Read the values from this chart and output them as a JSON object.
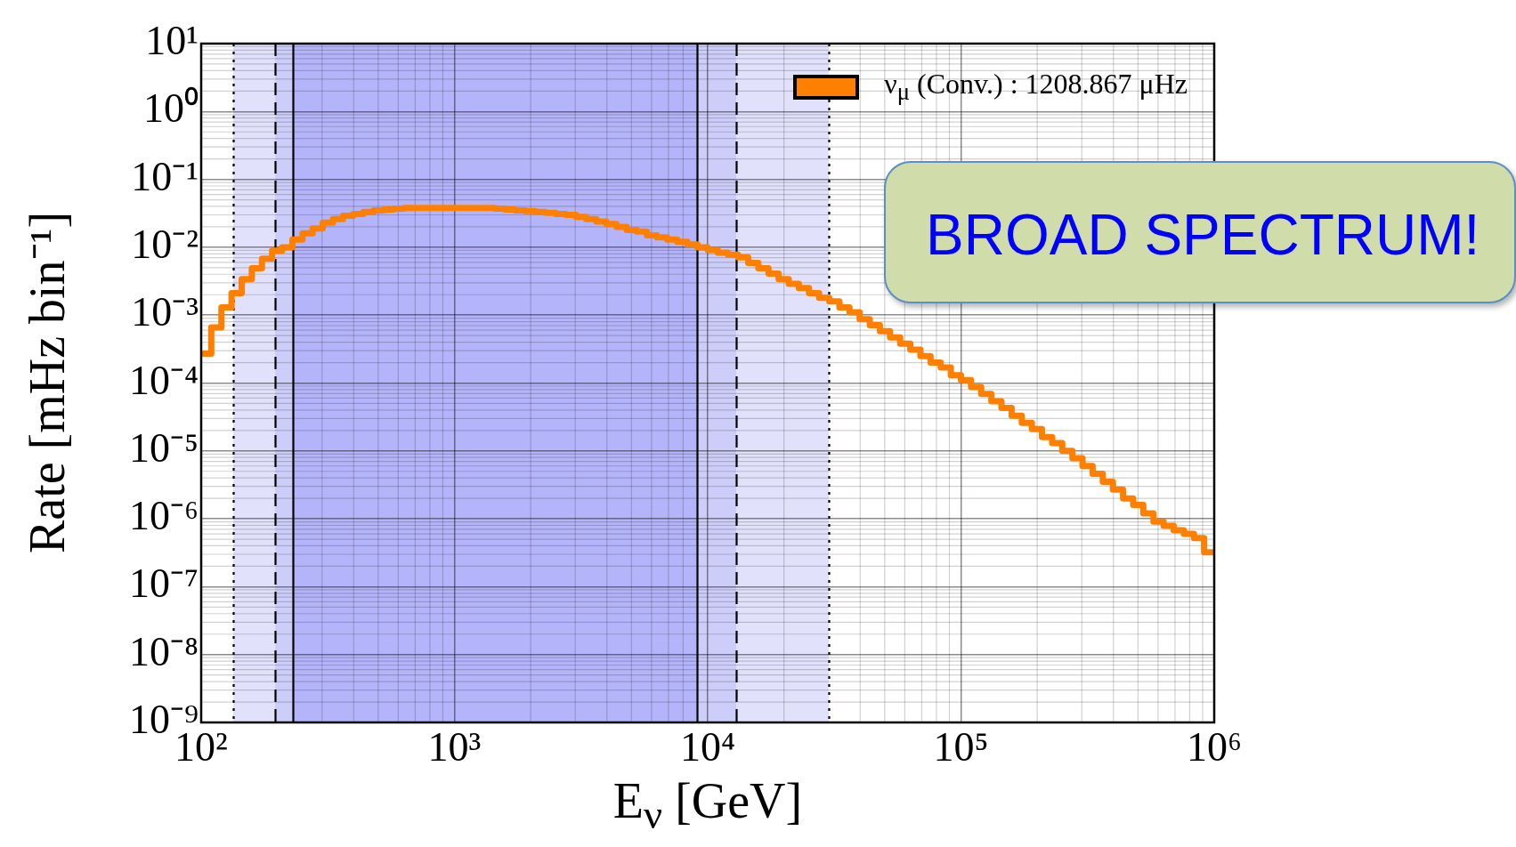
{
  "chart_data": {
    "type": "histogram",
    "xlabel": "E$_{ν}$ [GeV]",
    "ylabel": "Rate [mHz bin⁻¹]",
    "bins": [
      100,
      109.6,
      120.2,
      131.8,
      144.5,
      158.5,
      173.8,
      190.5,
      208.9,
      229.1,
      251.2,
      275.4,
      302,
      331.1,
      363.1,
      398.1,
      436.5,
      478.6,
      524.8,
      575.4,
      631,
      691.8,
      758.6,
      831.8,
      912,
      1000,
      1096,
      1202,
      1318,
      1445,
      1585,
      1738,
      1905,
      2089,
      2291,
      2512,
      2754,
      3020,
      3311,
      3631,
      3981,
      4365,
      4786,
      5248,
      5754,
      6310,
      6918,
      7586,
      8318,
      9120,
      10000,
      10960,
      12020,
      13180,
      14450,
      15850,
      17380,
      19050,
      20890,
      22910,
      25120,
      27540,
      30200,
      33110,
      36310,
      39810,
      43650,
      47860,
      52480,
      57540,
      63100,
      69180,
      75860,
      83180,
      91200,
      100000,
      109600,
      120200,
      131800,
      144500,
      158500,
      173800,
      190500,
      208900,
      229100,
      251200,
      275400,
      302000,
      331100,
      363100,
      398100,
      436500,
      478600,
      524800,
      575400,
      631000,
      691800,
      758600,
      831800,
      912000,
      1000000
    ],
    "series": [
      {
        "name": "ν$_{μ}$ (Conv.) : 1208.867 μHz",
        "color": "#ff8000",
        "values": [
          0.00027,
          0.00066,
          0.0013,
          0.0021,
          0.0034,
          0.0049,
          0.0068,
          0.0089,
          0.01,
          0.013,
          0.016,
          0.019,
          0.023,
          0.026,
          0.029,
          0.031,
          0.033,
          0.035,
          0.036,
          0.037,
          0.038,
          0.038,
          0.038,
          0.038,
          0.038,
          0.038,
          0.038,
          0.038,
          0.038,
          0.037,
          0.036,
          0.035,
          0.034,
          0.033,
          0.032,
          0.031,
          0.03,
          0.028,
          0.026,
          0.024,
          0.022,
          0.02,
          0.018,
          0.017,
          0.015,
          0.014,
          0.013,
          0.012,
          0.011,
          0.01,
          0.0091,
          0.0083,
          0.0078,
          0.0071,
          0.0059,
          0.0049,
          0.0041,
          0.0034,
          0.0029,
          0.0025,
          0.0021,
          0.0018,
          0.0016,
          0.0013,
          0.0011,
          0.00087,
          0.00071,
          0.00058,
          0.00047,
          0.00038,
          0.00031,
          0.00025,
          0.0002,
          0.00017,
          0.00013,
          0.00011,
          8.7e-05,
          6.9e-05,
          5.4e-05,
          4.3e-05,
          3.3e-05,
          2.6e-05,
          2.1e-05,
          1.6e-05,
          1.3e-05,
          1e-05,
          7.8e-06,
          6e-06,
          4.6e-06,
          3.5e-06,
          2.7e-06,
          2e-06,
          1.6e-06,
          1.2e-06,
          9.1e-07,
          7.9e-07,
          6.8e-07,
          6e-07,
          5.2e-07,
          3.2e-07
        ]
      }
    ],
    "log": "xy",
    "xlim": [
      100,
      1000000
    ],
    "xticks": [
      {
        "value": 100,
        "label": "10²"
      },
      {
        "value": 1000,
        "label": "10³"
      },
      {
        "value": 10000,
        "label": "10⁴"
      },
      {
        "value": 100000,
        "label": "10⁵"
      },
      {
        "value": 1000000,
        "label": "10⁶"
      }
    ],
    "ylim": [
      1e-09,
      10
    ],
    "yticks": [
      {
        "value": 1e-09,
        "label": "10⁻⁹"
      },
      {
        "value": 1e-08,
        "label": "10⁻⁸"
      },
      {
        "value": 1e-07,
        "label": "10⁻⁷"
      },
      {
        "value": 1e-06,
        "label": "10⁻⁶"
      },
      {
        "value": 1e-05,
        "label": "10⁻⁵"
      },
      {
        "value": 0.0001,
        "label": "10⁻⁴"
      },
      {
        "value": 0.001,
        "label": "10⁻³"
      },
      {
        "value": 0.01,
        "label": "10⁻²"
      },
      {
        "value": 0.1,
        "label": "10⁻¹"
      },
      {
        "value": 1,
        "label": "10⁰"
      },
      {
        "value": 10,
        "label": "10¹"
      }
    ],
    "grid": true,
    "legend": "top right",
    "bands": [
      {
        "axis": "x",
        "from": 134,
        "to": 30000,
        "color": "#e1e1fb"
      },
      {
        "axis": "x",
        "from": 195,
        "to": 13000,
        "color": "#cdcdf9"
      },
      {
        "axis": "x",
        "from": 230,
        "to": 9100,
        "color": "#b4b4fa"
      }
    ],
    "ref_lines": [
      {
        "axis": "x",
        "value": 134,
        "line_style": "dotted"
      },
      {
        "axis": "x",
        "value": 30000,
        "line_style": "dotted"
      },
      {
        "axis": "x",
        "value": 195,
        "line_style": "dashed"
      },
      {
        "axis": "x",
        "value": 13000,
        "line_style": "dashed"
      },
      {
        "axis": "x",
        "value": 230,
        "line_style": "solid"
      },
      {
        "axis": "x",
        "value": 9100,
        "line_style": "solid"
      }
    ],
    "annotations": [
      "BROAD SPECTRUM!"
    ]
  }
}
